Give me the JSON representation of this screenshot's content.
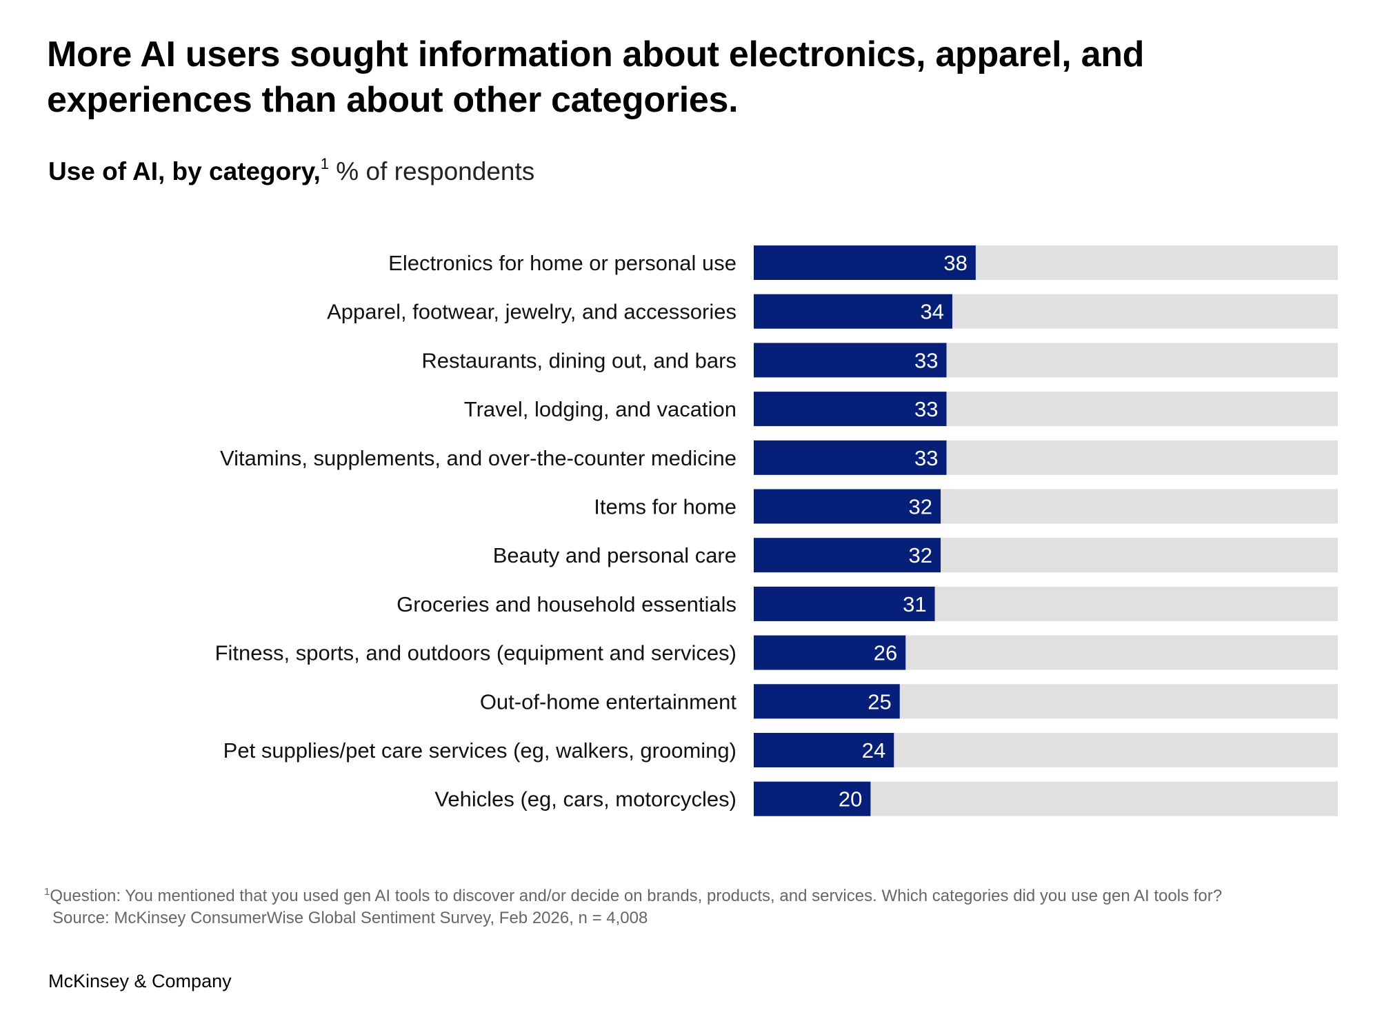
{
  "title": "More AI users sought information about electronics, apparel, and experiences than about other categories.",
  "subtitle": {
    "bold": "Use of AI, by category,",
    "superscript": "1",
    "normal": " % of respondents"
  },
  "colors": {
    "bar": "#06207a",
    "track": "#e0e0e0",
    "value_label": "#ffffff"
  },
  "chart_data": {
    "type": "bar",
    "orientation": "horizontal",
    "title": "Use of AI, by category, % of respondents",
    "xlabel": "",
    "ylabel": "",
    "xlim": [
      0,
      100
    ],
    "categories": [
      "Electronics for home or personal use",
      "Apparel, footwear, jewelry, and accessories",
      "Restaurants, dining out, and bars",
      "Travel, lodging, and vacation",
      "Vitamins, supplements, and over-the-counter medicine",
      "Items for home",
      "Beauty and personal care",
      "Groceries and household essentials",
      "Fitness, sports, and outdoors (equipment and services)",
      "Out-of-home entertainment",
      "Pet supplies/pet care services (eg, walkers, grooming)",
      "Vehicles (eg, cars, motorcycles)"
    ],
    "values": [
      38,
      34,
      33,
      33,
      33,
      32,
      32,
      31,
      26,
      25,
      24,
      20
    ],
    "grid": false,
    "legend": "none"
  },
  "footnote": {
    "marker": "1",
    "question": "Question: You mentioned that you used gen AI tools to discover and/or decide on brands, products, and services. Which categories did you use gen AI tools for?",
    "source": "Source: McKinsey ConsumerWise Global Sentiment Survey, Feb 2026, n = 4,008"
  },
  "brand": "McKinsey & Company"
}
